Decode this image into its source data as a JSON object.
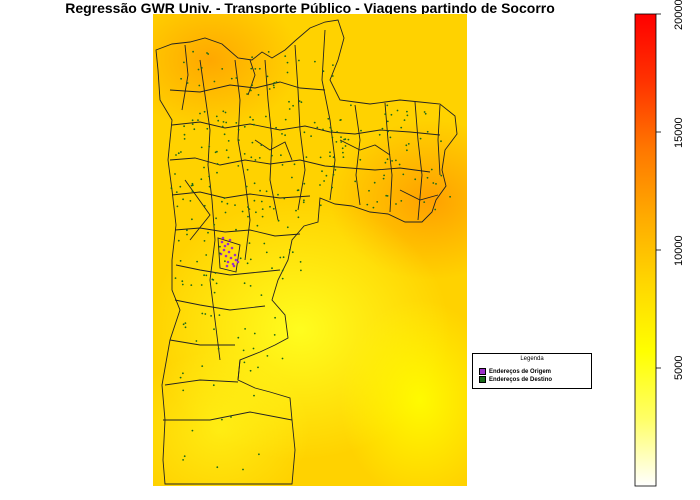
{
  "title": "Regressão GWR Univ. - Transporte Público - Viagens partindo de Socorro",
  "legend": {
    "title": "Legenda",
    "items": [
      {
        "label": "Endereços de Origem",
        "color": "#9b30c8"
      },
      {
        "label": "Endereços de Destino",
        "color": "#1a6b1a"
      }
    ]
  },
  "colorbar": {
    "min": 0,
    "max": 20000,
    "ticks": [
      {
        "value": 5000,
        "label": "5000"
      },
      {
        "value": 10000,
        "label": "10000"
      },
      {
        "value": 15000,
        "label": "15000"
      },
      {
        "value": 20000,
        "label": "20000"
      }
    ],
    "colors": [
      "#ffffff",
      "#ffff66",
      "#ffff00",
      "#ffd700",
      "#ffaa00",
      "#ff7700",
      "#ff3300",
      "#ff0000"
    ]
  },
  "colors": {
    "map_base": "#ffd400",
    "map_hot": "#ff9a00",
    "map_cool": "#ffff33",
    "boundary": "#222222"
  }
}
